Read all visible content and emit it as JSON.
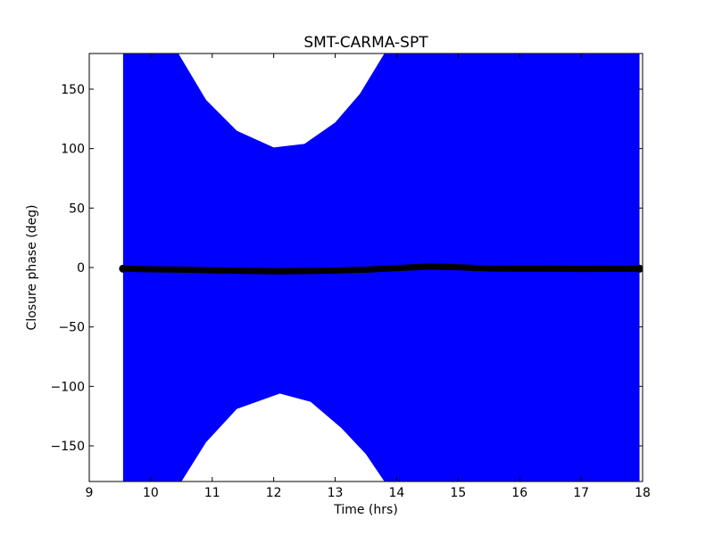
{
  "chart_data": {
    "type": "scatter",
    "title": "SMT-CARMA-SPT",
    "xlabel": "Time (hrs)",
    "ylabel": "Closure phase (deg)",
    "xlim": [
      9,
      18
    ],
    "ylim": [
      -180,
      180
    ],
    "xticks": [
      9,
      10,
      11,
      12,
      13,
      14,
      15,
      16,
      17,
      18
    ],
    "yticks": [
      -150,
      -100,
      -50,
      0,
      50,
      100,
      150
    ],
    "grid": false,
    "legend": "none",
    "error_band": {
      "color": "#0000ff",
      "x_start": 9.55,
      "x_end": 17.95,
      "gap_top": [
        {
          "x": 10.45,
          "y": 180
        },
        {
          "x": 10.9,
          "y": 141
        },
        {
          "x": 11.4,
          "y": 115
        },
        {
          "x": 12.0,
          "y": 101
        },
        {
          "x": 12.5,
          "y": 104
        },
        {
          "x": 13.0,
          "y": 122
        },
        {
          "x": 13.4,
          "y": 146
        },
        {
          "x": 13.8,
          "y": 180
        }
      ],
      "gap_bottom": [
        {
          "x": 10.5,
          "y": -180
        },
        {
          "x": 10.9,
          "y": -147
        },
        {
          "x": 11.4,
          "y": -119
        },
        {
          "x": 12.1,
          "y": -106
        },
        {
          "x": 12.6,
          "y": -113
        },
        {
          "x": 13.1,
          "y": -135
        },
        {
          "x": 13.5,
          "y": -157
        },
        {
          "x": 13.8,
          "y": -180
        }
      ]
    },
    "series": [
      {
        "color": "#000000",
        "points": [
          {
            "x": 9.55,
            "y": -1
          },
          {
            "x": 10.0,
            "y": -1.5
          },
          {
            "x": 10.5,
            "y": -1.8
          },
          {
            "x": 11.0,
            "y": -2.3
          },
          {
            "x": 11.5,
            "y": -2.8
          },
          {
            "x": 12.0,
            "y": -3.2
          },
          {
            "x": 12.5,
            "y": -3.0
          },
          {
            "x": 13.0,
            "y": -2.5
          },
          {
            "x": 13.5,
            "y": -1.8
          },
          {
            "x": 14.0,
            "y": -0.5
          },
          {
            "x": 14.5,
            "y": 0.8
          },
          {
            "x": 15.0,
            "y": 0.3
          },
          {
            "x": 15.5,
            "y": -0.8
          },
          {
            "x": 16.0,
            "y": -1.0
          },
          {
            "x": 16.5,
            "y": -1.0
          },
          {
            "x": 17.0,
            "y": -1.2
          },
          {
            "x": 17.5,
            "y": -1.1
          },
          {
            "x": 17.95,
            "y": -1.0
          }
        ]
      }
    ]
  }
}
